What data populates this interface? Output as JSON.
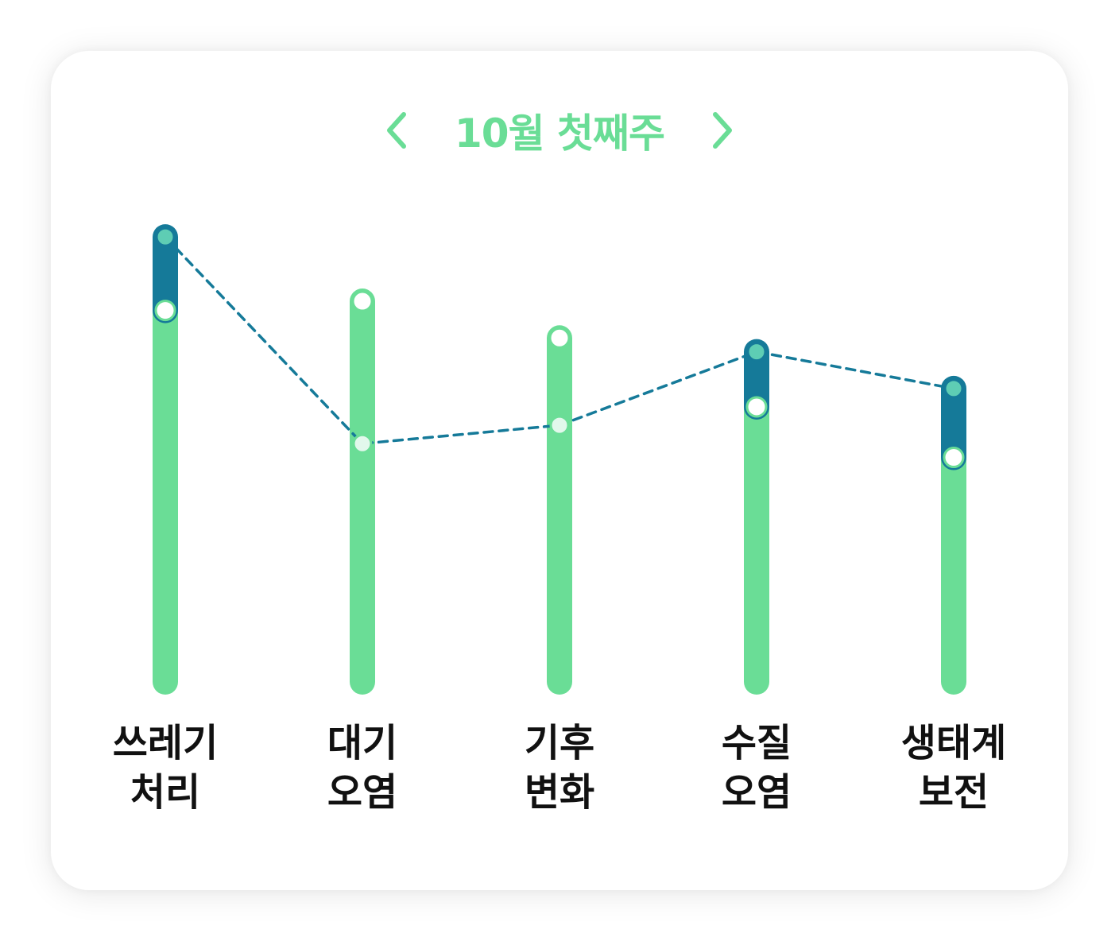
{
  "header": {
    "title": "10월 첫째주",
    "prev_icon": "chevron-left-icon",
    "next_icon": "chevron-right-icon"
  },
  "colors": {
    "accent": "#6ADD96",
    "bar_bottom": "#6ADD96",
    "bar_top": "#157A99",
    "top_dot": "#5ECDB4",
    "line": "#157A99",
    "card": "#FFFFFF",
    "label": "#111111"
  },
  "chart_data": {
    "type": "bar",
    "categories": [
      [
        "쓰레기",
        "처리"
      ],
      [
        "대기",
        "오염"
      ],
      [
        "기후",
        "변화"
      ],
      [
        "수질",
        "오염"
      ],
      [
        "생태계",
        "보전"
      ]
    ],
    "bar_values": [
      80,
      82,
      74,
      59,
      48
    ],
    "line_values": [
      96,
      51,
      55,
      71,
      63
    ],
    "ylim": [
      0,
      100
    ],
    "grid": false,
    "legend": "none"
  }
}
